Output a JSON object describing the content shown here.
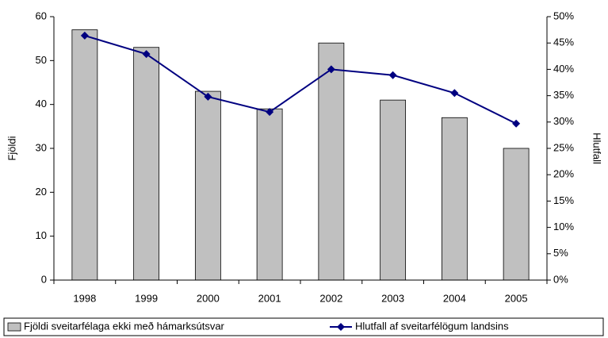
{
  "chart_data": {
    "type": "bar-line",
    "categories": [
      "1998",
      "1999",
      "2000",
      "2001",
      "2002",
      "2003",
      "2004",
      "2005"
    ],
    "series": [
      {
        "name": "Fjöldi sveitarfélaga ekki með hámarksútsvar",
        "type": "bar",
        "color": "#c0c0c0",
        "values": [
          57,
          53,
          43,
          39,
          54,
          41,
          37,
          30
        ]
      },
      {
        "name": "Hlutfall af sveitarfélögum landsins",
        "type": "line",
        "color": "#000080",
        "axis": "y2",
        "values": [
          46.4,
          42.9,
          34.8,
          31.9,
          40.0,
          38.9,
          35.5,
          29.7
        ]
      }
    ],
    "ylabel": "Fjöldi",
    "y2label": "Hlutfall",
    "ylim": [
      0,
      60
    ],
    "yticks": [
      0,
      10,
      20,
      30,
      40,
      50,
      60
    ],
    "y2lim": [
      0,
      50
    ],
    "y2ticks": [
      {
        "value": 0,
        "label": "0%"
      },
      {
        "value": 5,
        "label": "5%"
      },
      {
        "value": 10,
        "label": "10%"
      },
      {
        "value": 15,
        "label": "15%"
      },
      {
        "value": 20,
        "label": "20%"
      },
      {
        "value": 25,
        "label": "25%"
      },
      {
        "value": 30,
        "label": "30%"
      },
      {
        "value": 35,
        "label": "35%"
      },
      {
        "value": 40,
        "label": "40%"
      },
      {
        "value": 45,
        "label": "45%"
      },
      {
        "value": 50,
        "label": "50%"
      }
    ],
    "grid": false,
    "legend": "bottom"
  }
}
